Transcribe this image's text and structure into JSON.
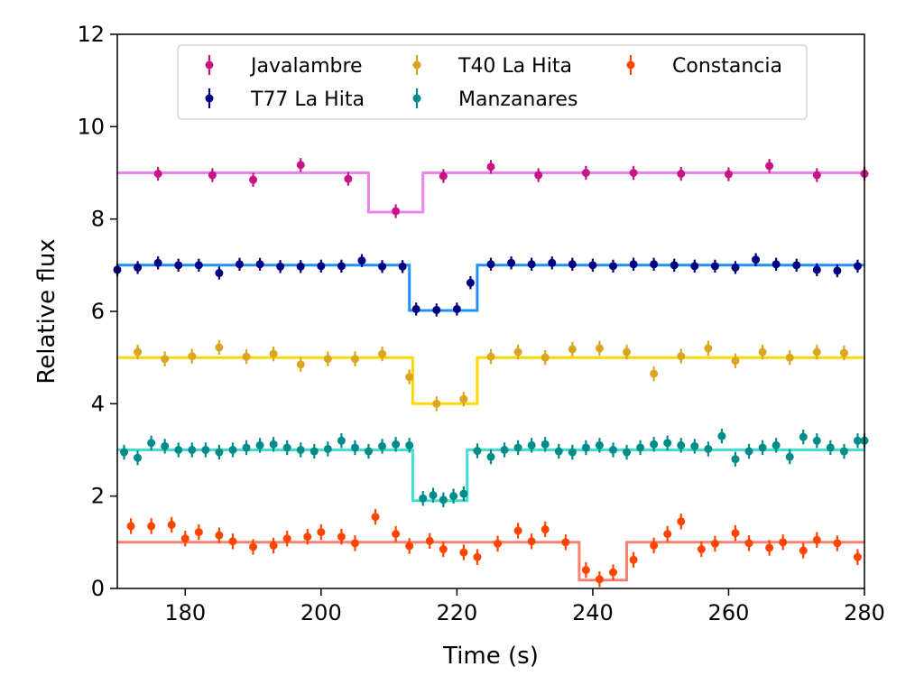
{
  "chart_data": {
    "type": "scatter",
    "xlabel": "Time (s)",
    "ylabel": "Relative flux",
    "xlim": [
      170,
      280
    ],
    "ylim": [
      0,
      12
    ],
    "xticks": [
      180,
      200,
      220,
      240,
      260,
      280
    ],
    "yticks": [
      0,
      2,
      4,
      6,
      8,
      10,
      12
    ],
    "grid": false,
    "legend_position": "top",
    "series": [
      {
        "name": "Javalambre",
        "color": "#c71585",
        "model_color": "#ee82ee",
        "points": [
          [
            176,
            8.98
          ],
          [
            184,
            8.95
          ],
          [
            190,
            8.85
          ],
          [
            197,
            9.17
          ],
          [
            204,
            8.87
          ],
          [
            211,
            8.17
          ],
          [
            218,
            8.93
          ],
          [
            225,
            9.13
          ],
          [
            232,
            8.95
          ],
          [
            239,
            9.0
          ],
          [
            246,
            9.0
          ],
          [
            253,
            8.98
          ],
          [
            260,
            8.97
          ],
          [
            266,
            9.15
          ],
          [
            273,
            8.95
          ],
          [
            280,
            8.98
          ]
        ],
        "model": [
          [
            170,
            9.0
          ],
          [
            207,
            9.0
          ],
          [
            207,
            8.15
          ],
          [
            215,
            8.15
          ],
          [
            215,
            9.0
          ],
          [
            280,
            9.0
          ]
        ]
      },
      {
        "name": "T77 La Hita",
        "color": "#000080",
        "model_color": "#1e90ff",
        "points": [
          [
            170,
            6.9
          ],
          [
            173,
            6.95
          ],
          [
            176,
            7.05
          ],
          [
            179,
            7.0
          ],
          [
            182,
            7.0
          ],
          [
            185,
            6.83
          ],
          [
            188,
            7.02
          ],
          [
            191,
            7.02
          ],
          [
            194,
            6.97
          ],
          [
            197,
            6.97
          ],
          [
            200,
            6.98
          ],
          [
            203,
            6.98
          ],
          [
            206,
            7.1
          ],
          [
            209,
            6.97
          ],
          [
            212,
            6.97
          ],
          [
            214,
            6.05
          ],
          [
            217,
            6.03
          ],
          [
            220,
            6.05
          ],
          [
            222,
            6.62
          ],
          [
            225,
            7.02
          ],
          [
            228,
            7.05
          ],
          [
            231,
            7.02
          ],
          [
            234,
            7.05
          ],
          [
            237,
            7.02
          ],
          [
            240,
            7.0
          ],
          [
            243,
            6.98
          ],
          [
            246,
            7.02
          ],
          [
            249,
            7.02
          ],
          [
            252,
            7.0
          ],
          [
            255,
            6.98
          ],
          [
            258,
            6.98
          ],
          [
            261,
            6.95
          ],
          [
            264,
            7.12
          ],
          [
            267,
            7.02
          ],
          [
            270,
            7.0
          ],
          [
            273,
            6.9
          ],
          [
            276,
            6.88
          ],
          [
            279,
            6.98
          ]
        ],
        "model": [
          [
            170,
            7.0
          ],
          [
            213,
            7.0
          ],
          [
            213,
            6.02
          ],
          [
            223,
            6.02
          ],
          [
            223,
            7.0
          ],
          [
            280,
            7.0
          ]
        ]
      },
      {
        "name": "T40 La Hita",
        "color": "#daa520",
        "model_color": "#ffd700",
        "points": [
          [
            173,
            5.12
          ],
          [
            177,
            4.97
          ],
          [
            181,
            5.03
          ],
          [
            185,
            5.22
          ],
          [
            189,
            5.02
          ],
          [
            193,
            5.08
          ],
          [
            197,
            4.85
          ],
          [
            201,
            4.97
          ],
          [
            205,
            4.97
          ],
          [
            209,
            5.08
          ],
          [
            213,
            4.58
          ],
          [
            217,
            4.0
          ],
          [
            221,
            4.1
          ],
          [
            225,
            5.02
          ],
          [
            229,
            5.12
          ],
          [
            233,
            5.0
          ],
          [
            237,
            5.18
          ],
          [
            241,
            5.2
          ],
          [
            245,
            5.12
          ],
          [
            249,
            4.65
          ],
          [
            253,
            5.03
          ],
          [
            257,
            5.2
          ],
          [
            261,
            4.93
          ],
          [
            265,
            5.12
          ],
          [
            269,
            5.0
          ],
          [
            273,
            5.12
          ],
          [
            277,
            5.1
          ]
        ],
        "model": [
          [
            170,
            5.0
          ],
          [
            213.5,
            5.0
          ],
          [
            213.5,
            4.0
          ],
          [
            223,
            4.0
          ],
          [
            223,
            5.0
          ],
          [
            280,
            5.0
          ]
        ]
      },
      {
        "name": "Manzanares",
        "color": "#008b8b",
        "model_color": "#40e0d0",
        "points": [
          [
            171,
            2.95
          ],
          [
            173,
            2.83
          ],
          [
            175,
            3.15
          ],
          [
            177,
            3.08
          ],
          [
            179,
            3.0
          ],
          [
            181,
            3.0
          ],
          [
            183,
            3.0
          ],
          [
            185,
            2.95
          ],
          [
            187,
            3.0
          ],
          [
            189,
            3.05
          ],
          [
            191,
            3.1
          ],
          [
            193,
            3.12
          ],
          [
            195,
            3.05
          ],
          [
            197,
            3.0
          ],
          [
            199,
            2.97
          ],
          [
            201,
            3.02
          ],
          [
            203,
            3.2
          ],
          [
            205,
            3.05
          ],
          [
            207,
            2.97
          ],
          [
            209,
            3.08
          ],
          [
            211,
            3.12
          ],
          [
            213,
            3.1
          ],
          [
            215,
            1.95
          ],
          [
            216.5,
            2.02
          ],
          [
            218,
            1.92
          ],
          [
            219.5,
            2.0
          ],
          [
            221,
            2.05
          ],
          [
            223,
            2.98
          ],
          [
            225,
            2.85
          ],
          [
            227,
            3.0
          ],
          [
            229,
            3.05
          ],
          [
            231,
            3.1
          ],
          [
            233,
            3.12
          ],
          [
            235,
            2.97
          ],
          [
            237,
            2.95
          ],
          [
            239,
            3.05
          ],
          [
            241,
            3.1
          ],
          [
            243,
            3.0
          ],
          [
            245,
            2.95
          ],
          [
            247,
            3.05
          ],
          [
            249,
            3.12
          ],
          [
            251,
            3.15
          ],
          [
            253,
            3.1
          ],
          [
            255,
            3.08
          ],
          [
            257,
            3.02
          ],
          [
            259,
            3.3
          ],
          [
            261,
            2.8
          ],
          [
            263,
            2.97
          ],
          [
            265,
            3.05
          ],
          [
            267,
            3.1
          ],
          [
            269,
            2.85
          ],
          [
            271,
            3.28
          ],
          [
            273,
            3.2
          ],
          [
            275,
            3.05
          ],
          [
            277,
            2.97
          ],
          [
            279,
            3.2
          ],
          [
            280,
            3.2
          ]
        ],
        "model": [
          [
            170,
            3.0
          ],
          [
            213.5,
            3.0
          ],
          [
            213.5,
            1.9
          ],
          [
            221.5,
            1.9
          ],
          [
            221.5,
            3.0
          ],
          [
            280,
            3.0
          ]
        ]
      },
      {
        "name": "Constancia",
        "color": "#ff4500",
        "model_color": "#fa8072",
        "points": [
          [
            172,
            1.35
          ],
          [
            175,
            1.35
          ],
          [
            178,
            1.38
          ],
          [
            180,
            1.08
          ],
          [
            182,
            1.22
          ],
          [
            185,
            1.15
          ],
          [
            187,
            1.02
          ],
          [
            190,
            0.9
          ],
          [
            193,
            0.93
          ],
          [
            195,
            1.08
          ],
          [
            198,
            1.12
          ],
          [
            200,
            1.22
          ],
          [
            203,
            1.12
          ],
          [
            205,
            0.98
          ],
          [
            208,
            1.55
          ],
          [
            211,
            1.18
          ],
          [
            213,
            0.92
          ],
          [
            216,
            1.03
          ],
          [
            218,
            0.85
          ],
          [
            221,
            0.78
          ],
          [
            223,
            0.68
          ],
          [
            226,
            0.97
          ],
          [
            229,
            1.25
          ],
          [
            231,
            1.02
          ],
          [
            233,
            1.28
          ],
          [
            236,
            1.0
          ],
          [
            239,
            0.4
          ],
          [
            241,
            0.2
          ],
          [
            243,
            0.35
          ],
          [
            246,
            0.62
          ],
          [
            249,
            0.93
          ],
          [
            251,
            1.18
          ],
          [
            253,
            1.45
          ],
          [
            256,
            0.85
          ],
          [
            258,
            0.97
          ],
          [
            261,
            1.2
          ],
          [
            263,
            0.98
          ],
          [
            266,
            0.88
          ],
          [
            268,
            1.0
          ],
          [
            271,
            0.82
          ],
          [
            273,
            1.05
          ],
          [
            276,
            0.98
          ],
          [
            279,
            0.68
          ]
        ],
        "model": [
          [
            170,
            1.0
          ],
          [
            238,
            1.0
          ],
          [
            238,
            0.18
          ],
          [
            245,
            0.18
          ],
          [
            245,
            1.0
          ],
          [
            280,
            1.0
          ]
        ]
      }
    ]
  }
}
